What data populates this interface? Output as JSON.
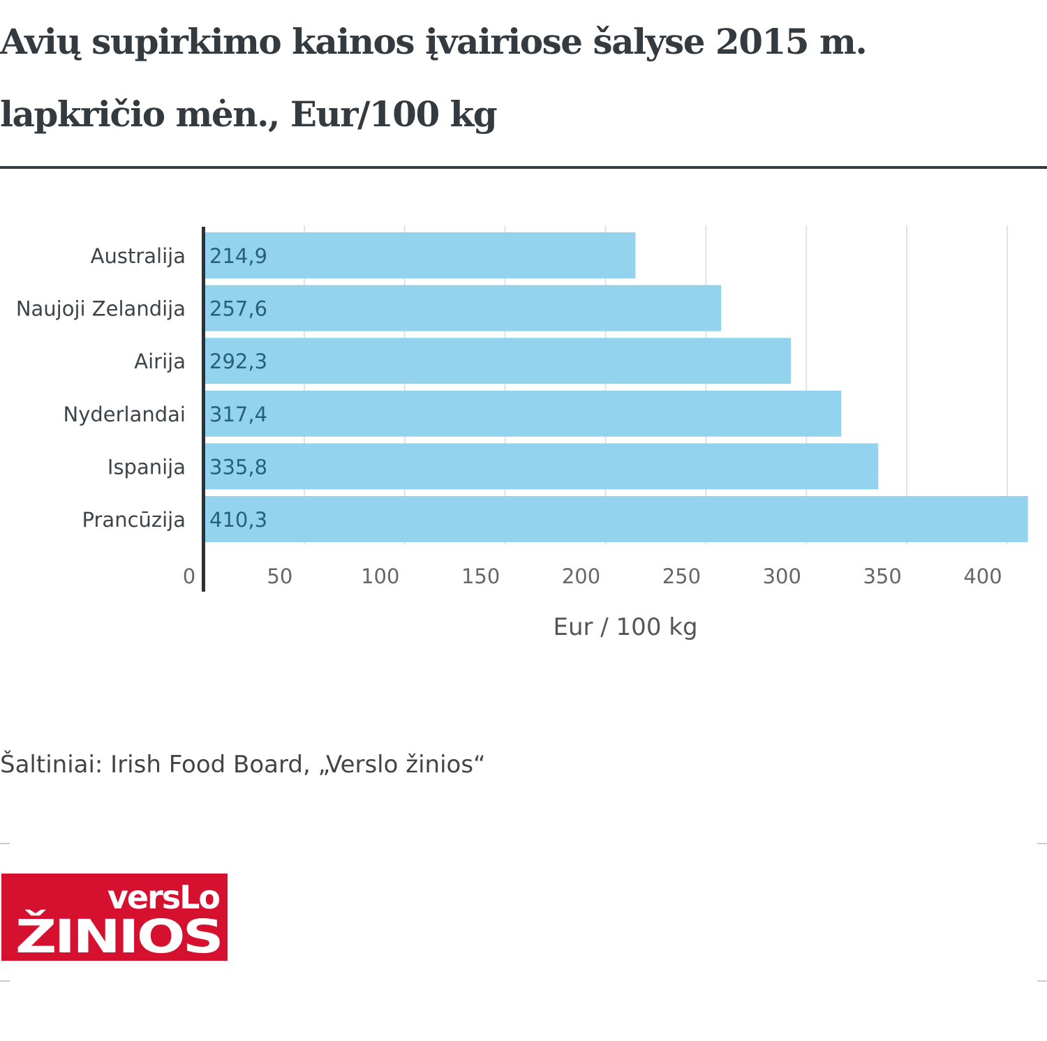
{
  "chart_data": {
    "type": "bar",
    "orientation": "horizontal",
    "title": "Avių supirkimo kainos įvairiose šalyse 2015 m. lapkričio mėn., Eur/100 kg",
    "categories": [
      "Australija",
      "Naujoji Zelandija",
      "Airija",
      "Nyderlandai",
      "Ispanija",
      "Prancūzija"
    ],
    "values": [
      214.9,
      257.6,
      292.3,
      317.4,
      335.8,
      410.3
    ],
    "value_labels": [
      "214,9",
      "257,6",
      "292,3",
      "317,4",
      "335,8",
      "410,3"
    ],
    "xlabel": "Eur / 100 kg",
    "ylabel": "",
    "xlim": [
      0,
      400
    ],
    "xticks": [
      0,
      50,
      100,
      150,
      200,
      250,
      300,
      350,
      400
    ],
    "xtick_labels": [
      "0",
      "50",
      "100",
      "150",
      "200",
      "250",
      "300",
      "350",
      "400"
    ],
    "grid": true,
    "bar_color": "#93d3ee",
    "label_color": "#2a5f7a"
  },
  "source": "Šaltiniai: Irish Food Board, „Verslo žinios“",
  "logo": {
    "line1": "versLo",
    "line2": "žinios",
    "color": "#d6112f"
  }
}
